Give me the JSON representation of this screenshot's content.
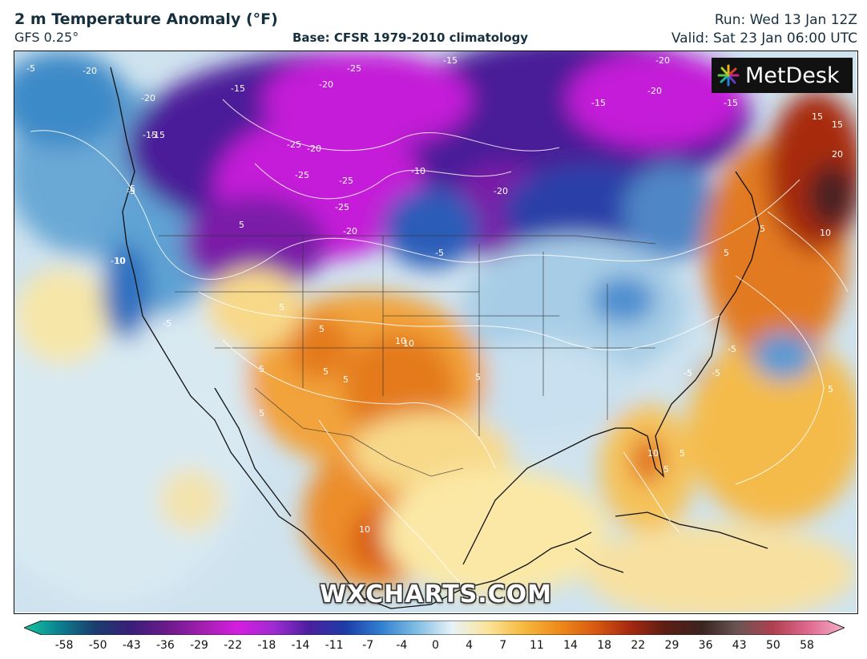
{
  "header": {
    "title": "2 m Temperature Anomaly (°F)",
    "model": "GFS 0.25°",
    "base": "Base: CFSR 1979-2010 climatology",
    "run": "Run: Wed 13 Jan 12Z",
    "valid": "Valid: Sat 23 Jan 06:00 UTC"
  },
  "logo": {
    "text": "MetDesk",
    "icon": "metdesk-burst-icon"
  },
  "watermark": "WXCHARTS.COM",
  "colorbar": {
    "ticks": [
      "-58",
      "-50",
      "-43",
      "-36",
      "-29",
      "-22",
      "-18",
      "-14",
      "-11",
      "-7",
      "-4",
      "0",
      "4",
      "7",
      "11",
      "14",
      "18",
      "22",
      "29",
      "36",
      "43",
      "50",
      "58"
    ],
    "colors": [
      "#14c9a0",
      "#0b7f8f",
      "#1b3c6e",
      "#3a1e7a",
      "#6b1a8a",
      "#a21fb0",
      "#d51ee0",
      "#a02bd1",
      "#4a1f9e",
      "#1d3ca8",
      "#2f7fd1",
      "#7fbde3",
      "#e8f2f8",
      "#fbe49a",
      "#f6b93e",
      "#ee8a1a",
      "#d85a10",
      "#a52810",
      "#5b1d14",
      "#3a2420",
      "#6a5553",
      "#b04050",
      "#e06a90",
      "#f4b0c8"
    ],
    "colors_note_visual": "gradient stops"
  },
  "map": {
    "contour_labels": [
      {
        "text": "-5"
      },
      {
        "text": "-20"
      },
      {
        "text": "-15"
      },
      {
        "text": "-20"
      },
      {
        "text": "-25"
      },
      {
        "text": "-15"
      },
      {
        "text": "-20"
      },
      {
        "text": "-15"
      },
      {
        "text": "-20"
      },
      {
        "text": "-15"
      },
      {
        "text": "-15"
      },
      {
        "text": "-20"
      },
      {
        "text": "-15"
      },
      {
        "text": "-25"
      },
      {
        "text": "-20"
      },
      {
        "text": "-25"
      },
      {
        "text": "-25"
      },
      {
        "text": "-25"
      },
      {
        "text": "-20"
      },
      {
        "text": "-10"
      },
      {
        "text": "-20"
      },
      {
        "text": "-5"
      },
      {
        "text": "-5"
      },
      {
        "text": "-10"
      },
      {
        "text": "-5"
      },
      {
        "text": "5"
      },
      {
        "text": "5"
      },
      {
        "text": "10"
      },
      {
        "text": "5"
      },
      {
        "text": "5"
      },
      {
        "text": "-5"
      },
      {
        "text": "-5"
      },
      {
        "text": "10"
      },
      {
        "text": "5"
      },
      {
        "text": "10"
      },
      {
        "text": "15"
      },
      {
        "text": "15"
      },
      {
        "text": "20"
      },
      {
        "text": "5"
      },
      {
        "text": "10"
      },
      {
        "text": "5"
      },
      {
        "text": "-5"
      },
      {
        "text": "-5"
      },
      {
        "text": "5"
      },
      {
        "text": "10"
      },
      {
        "text": "5"
      },
      {
        "text": "5"
      },
      {
        "text": "10"
      },
      {
        "text": "5"
      },
      {
        "text": "5"
      },
      {
        "text": "-5"
      },
      {
        "text": "5"
      }
    ]
  }
}
